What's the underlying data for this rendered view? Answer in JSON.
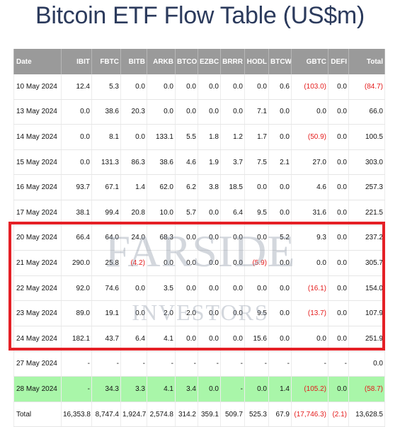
{
  "title": "Bitcoin ETF Flow Table (US$m)",
  "watermark": {
    "line1": "FARSIDE",
    "line2": "INVESTORS"
  },
  "colors": {
    "header_bg": "#9a9a9a",
    "negative": "#e41a1a",
    "highlight_row": "#a9f6a9",
    "annotation_box": "#e52026",
    "title": "#2b3a5c"
  },
  "columns": [
    "Date",
    "IBIT",
    "FBTC",
    "BITB",
    "ARKB",
    "BTCO",
    "EZBC",
    "BRRR",
    "HODL",
    "BTCW",
    "GBTC",
    "DEFI",
    "Total"
  ],
  "rows": [
    {
      "date": "10 May 2024",
      "cells": [
        "12.4",
        "5.3",
        "0.0",
        "0.0",
        "0.0",
        "0.0",
        "0.0",
        "0.0",
        "0.6",
        "(103.0)",
        "0.0",
        "(84.7)"
      ]
    },
    {
      "date": "13 May 2024",
      "cells": [
        "0.0",
        "38.6",
        "20.3",
        "0.0",
        "0.0",
        "0.0",
        "0.0",
        "7.1",
        "0.0",
        "0.0",
        "0.0",
        "66.0"
      ]
    },
    {
      "date": "14 May 2024",
      "cells": [
        "0.0",
        "8.1",
        "0.0",
        "133.1",
        "5.5",
        "1.8",
        "1.2",
        "1.7",
        "0.0",
        "(50.9)",
        "0.0",
        "100.5"
      ]
    },
    {
      "date": "15 May 2024",
      "cells": [
        "0.0",
        "131.3",
        "86.3",
        "38.6",
        "4.6",
        "1.9",
        "3.7",
        "7.5",
        "2.1",
        "27.0",
        "0.0",
        "303.0"
      ]
    },
    {
      "date": "16 May 2024",
      "cells": [
        "93.7",
        "67.1",
        "1.4",
        "62.0",
        "6.2",
        "3.8",
        "18.5",
        "0.0",
        "0.0",
        "4.6",
        "0.0",
        "257.3"
      ]
    },
    {
      "date": "17 May 2024",
      "cells": [
        "38.1",
        "99.4",
        "20.8",
        "10.0",
        "5.7",
        "0.0",
        "6.4",
        "9.5",
        "0.0",
        "31.6",
        "0.0",
        "221.5"
      ]
    },
    {
      "date": "20 May 2024",
      "cells": [
        "66.4",
        "64.0",
        "24.0",
        "68.3",
        "0.0",
        "0.0",
        "0.0",
        "0.0",
        "5.2",
        "9.3",
        "0.0",
        "237.2"
      ]
    },
    {
      "date": "21 May 2024",
      "cells": [
        "290.0",
        "25.8",
        "(4.2)",
        "0.0",
        "0.0",
        "0.0",
        "0.0",
        "(5.9)",
        "0.0",
        "0.0",
        "0.0",
        "305.7"
      ]
    },
    {
      "date": "22 May 2024",
      "cells": [
        "92.0",
        "74.6",
        "0.0",
        "3.5",
        "0.0",
        "0.0",
        "0.0",
        "0.0",
        "0.0",
        "(16.1)",
        "0.0",
        "154.0"
      ]
    },
    {
      "date": "23 May 2024",
      "cells": [
        "89.0",
        "19.1",
        "0.0",
        "2.0",
        "2.0",
        "0.0",
        "0.0",
        "9.5",
        "0.0",
        "(13.7)",
        "0.0",
        "107.9"
      ]
    },
    {
      "date": "24 May 2024",
      "cells": [
        "182.1",
        "43.7",
        "6.4",
        "4.1",
        "0.0",
        "0.0",
        "0.0",
        "15.6",
        "0.0",
        "0.0",
        "0.0",
        "251.9"
      ]
    },
    {
      "date": "27 May 2024",
      "cells": [
        "-",
        "-",
        "-",
        "-",
        "-",
        "-",
        "-",
        "-",
        "-",
        "-",
        "-",
        "0.0"
      ]
    },
    {
      "date": "28 May 2024",
      "highlight": true,
      "cells": [
        "-",
        "34.3",
        "3.3",
        "4.1",
        "3.4",
        "0.0",
        "-",
        "0.0",
        "1.4",
        "(105.2)",
        "0.0",
        "(58.7)"
      ]
    }
  ],
  "total_row": {
    "label": "Total",
    "cells": [
      "16,353.8",
      "8,747.4",
      "1,924.7",
      "2,574.8",
      "314.2",
      "359.1",
      "509.7",
      "525.3",
      "67.9",
      "(17,746.3)",
      "(2.1)",
      "13,628.5"
    ]
  }
}
